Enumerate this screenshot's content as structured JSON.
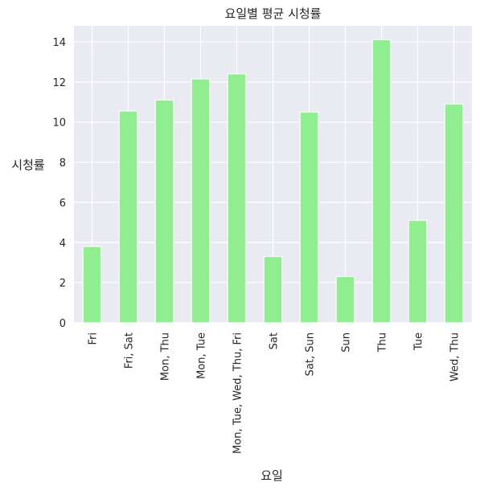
{
  "chart_data": {
    "type": "bar",
    "title": "요일별 평균 시청률",
    "xlabel": "요일",
    "ylabel": "시청률",
    "categories": [
      "Fri",
      "Fri, Sat",
      "Mon, Thu",
      "Mon, Tue",
      "Mon, Tue, Wed, Thu, Fri",
      "Sat",
      "Sat, Sun",
      "Sun",
      "Thu",
      "Tue",
      "Wed, Thu"
    ],
    "values": [
      3.8,
      10.55,
      11.1,
      12.15,
      12.4,
      3.3,
      10.5,
      2.3,
      14.1,
      5.1,
      10.9
    ],
    "ylim": [
      0,
      14.8
    ],
    "yticks": [
      0,
      2,
      4,
      6,
      8,
      10,
      12,
      14
    ],
    "grid": true,
    "bar_color": "#90EE90",
    "background_color": "#EAEAF2",
    "grid_color": "#FFFFFF"
  }
}
